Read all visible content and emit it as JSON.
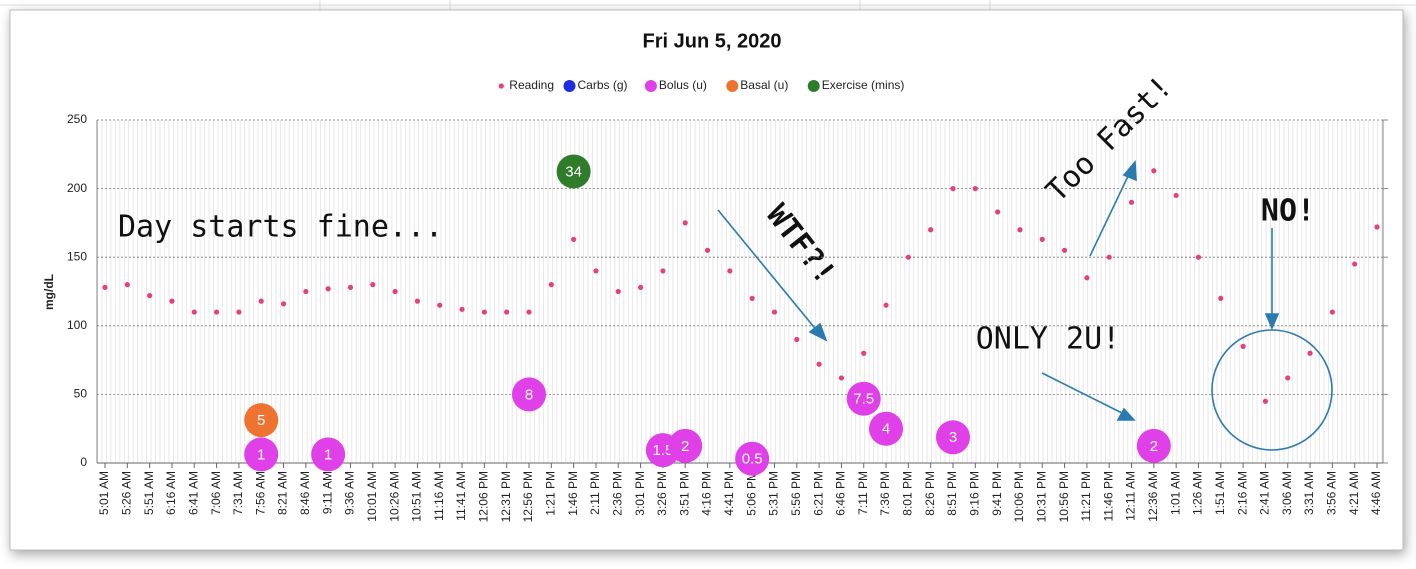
{
  "chart_data": {
    "type": "scatter",
    "title": "Fri Jun 5, 2020",
    "y_label": "mg/dL",
    "categories": [
      "5:01 AM",
      "5:26 AM",
      "5:51 AM",
      "6:16 AM",
      "6:41 AM",
      "7:06 AM",
      "7:31 AM",
      "7:56 AM",
      "8:21 AM",
      "8:46 AM",
      "9:11 AM",
      "9:36 AM",
      "10:01 AM",
      "10:26 AM",
      "10:51 AM",
      "11:16 AM",
      "11:41 AM",
      "12:06 PM",
      "12:31 PM",
      "12:56 PM",
      "1:21 PM",
      "1:46 PM",
      "2:11 PM",
      "2:36 PM",
      "3:01 PM",
      "3:26 PM",
      "3:51 PM",
      "4:16 PM",
      "4:41 PM",
      "5:06 PM",
      "5:31 PM",
      "5:56 PM",
      "6:21 PM",
      "6:46 PM",
      "7:11 PM",
      "7:36 PM",
      "8:01 PM",
      "8:26 PM",
      "8:51 PM",
      "9:16 PM",
      "9:41 PM",
      "10:06 PM",
      "10:31 PM",
      "10:56 PM",
      "11:21 PM",
      "11:46 PM",
      "12:11 AM",
      "12:36 AM",
      "1:01 AM",
      "1:26 AM",
      "1:51 AM",
      "2:16 AM",
      "2:41 AM",
      "3:06 AM",
      "3:31 AM",
      "3:56 AM",
      "4:21 AM",
      "4:46 AM"
    ],
    "series": [
      {
        "name": "Reading",
        "color": "#e6407a",
        "values": [
          128,
          130,
          122,
          118,
          110,
          110,
          110,
          118,
          116,
          125,
          127,
          128,
          130,
          125,
          118,
          115,
          112,
          110,
          110,
          110,
          130,
          163,
          140,
          125,
          128,
          140,
          175,
          155,
          140,
          120,
          110,
          90,
          72,
          62,
          80,
          115,
          150,
          170,
          200,
          200,
          183,
          170,
          163,
          155,
          135,
          150,
          190,
          213,
          195,
          150,
          120,
          85,
          45,
          62,
          80,
          110,
          145,
          172
        ]
      },
      {
        "name": "Carbs (g)",
        "color": "#1f2de0",
        "axis": "y2",
        "values": [
          null,
          null,
          null,
          null,
          null,
          null,
          null,
          null,
          null,
          null,
          null,
          null,
          null,
          null,
          null,
          null,
          null,
          null,
          null,
          null,
          null,
          null,
          null,
          null,
          null,
          null,
          null,
          null,
          null,
          null,
          null,
          null,
          null,
          null,
          null,
          null,
          null,
          null,
          null,
          null,
          null,
          null,
          null,
          null,
          null,
          null,
          null,
          null,
          null,
          null,
          null,
          null,
          null,
          null,
          null,
          null,
          null,
          null
        ]
      },
      {
        "name": "Bolus (u)",
        "color": "#e040e8",
        "axis": "y2",
        "values": [
          null,
          null,
          null,
          null,
          null,
          null,
          null,
          1,
          null,
          null,
          1,
          null,
          null,
          null,
          null,
          null,
          null,
          null,
          null,
          8,
          null,
          null,
          null,
          null,
          null,
          1.5,
          2,
          null,
          null,
          0.5,
          null,
          null,
          null,
          null,
          7.5,
          4,
          null,
          null,
          3,
          null,
          null,
          null,
          null,
          null,
          null,
          null,
          null,
          2,
          null,
          null,
          null,
          null,
          null,
          null,
          null,
          null,
          null,
          null
        ]
      },
      {
        "name": "Basal (u)",
        "color": "#ee7330",
        "axis": "y2",
        "values": [
          null,
          null,
          null,
          null,
          null,
          null,
          null,
          5,
          null,
          null,
          null,
          null,
          null,
          null,
          null,
          null,
          null,
          null,
          null,
          null,
          null,
          null,
          null,
          null,
          null,
          null,
          null,
          null,
          null,
          null,
          null,
          null,
          null,
          null,
          null,
          null,
          null,
          null,
          null,
          null,
          null,
          null,
          null,
          null,
          null,
          null,
          null,
          null,
          null,
          null,
          null,
          null,
          null,
          null,
          null,
          null,
          null,
          null
        ]
      },
      {
        "name": "Exercise (mins)",
        "color": "#2f7d2a",
        "axis": "y2",
        "values": [
          null,
          null,
          null,
          null,
          null,
          null,
          null,
          null,
          null,
          null,
          null,
          null,
          null,
          null,
          null,
          null,
          null,
          null,
          null,
          null,
          null,
          34,
          null,
          null,
          null,
          null,
          null,
          null,
          null,
          null,
          null,
          null,
          null,
          null,
          null,
          null,
          null,
          null,
          null,
          null,
          null,
          null,
          null,
          null,
          null,
          null,
          null,
          null,
          null,
          null,
          null,
          null,
          null,
          null,
          null,
          null,
          null,
          null
        ]
      }
    ],
    "ylim": [
      0,
      250
    ],
    "yticks": [
      0,
      50,
      100,
      150,
      200,
      250
    ],
    "y2lim": [
      0,
      40
    ],
    "grid": true,
    "legend": "top",
    "annotations": [
      "Day starts fine...",
      "WTF?!",
      "Too Fast!",
      "NO!",
      "ONLY 2U!"
    ]
  }
}
